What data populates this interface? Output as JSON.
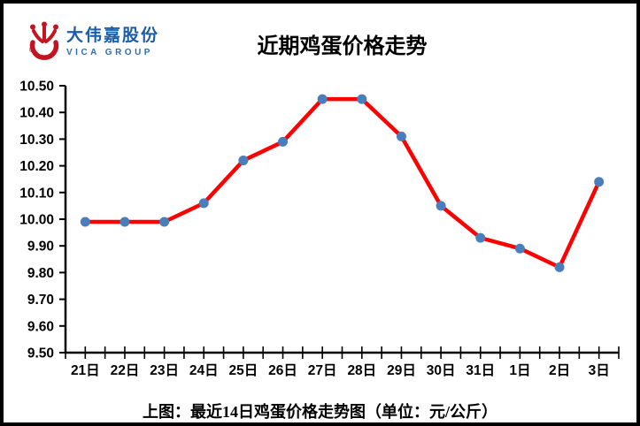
{
  "logo": {
    "company_cn": "大伟嘉股份",
    "company_en": "VICA GROUP",
    "trademark": "®",
    "crown_color": "#c41420",
    "text_color_cn": "#1a5dab",
    "text_color_en": "#2d6db5"
  },
  "title": "近期鸡蛋价格走势",
  "caption": "上图：最近14日鸡蛋价格走势图（单位：元/公斤）",
  "chart_data": {
    "type": "line",
    "title": "近期鸡蛋价格走势",
    "categories": [
      "21日",
      "22日",
      "23日",
      "24日",
      "25日",
      "26日",
      "27日",
      "28日",
      "29日",
      "30日",
      "31日",
      "1日",
      "2日",
      "3日"
    ],
    "values": [
      9.99,
      9.99,
      9.99,
      10.06,
      10.22,
      10.29,
      10.45,
      10.45,
      10.31,
      10.05,
      9.93,
      9.89,
      9.82,
      10.14
    ],
    "series_name": "鸡蛋价格",
    "unit": "元/公斤",
    "xlabel": "",
    "ylabel": "",
    "ylim": [
      9.5,
      10.5
    ],
    "ytick_step": 0.1,
    "ytick_labels": [
      "9.50",
      "9.60",
      "9.70",
      "9.80",
      "9.90",
      "10.00",
      "10.10",
      "10.20",
      "10.30",
      "10.40",
      "10.50"
    ],
    "grid": false,
    "legend": "none",
    "line_color": "#fe0000",
    "marker_color": "#4a7ebb",
    "marker_style": "circle",
    "axis_color": "#000000"
  }
}
